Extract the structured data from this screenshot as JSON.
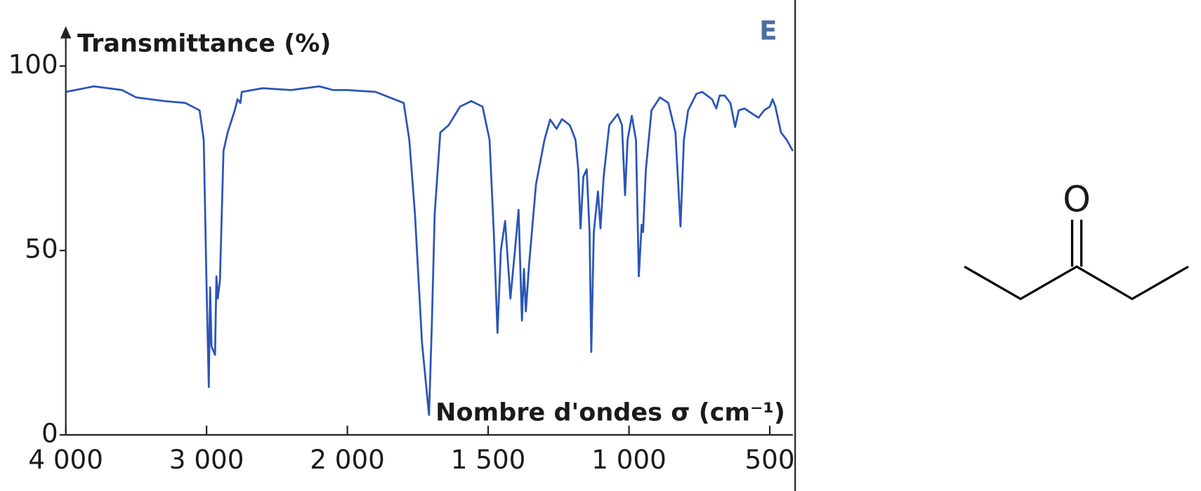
{
  "chart_data": {
    "type": "line",
    "panel_label": "E",
    "y_label": "Transmittance (%)",
    "x_label": "Nombre d'ondes σ (cm⁻¹)",
    "xscale": "piecewise",
    "xlim": [
      4000,
      418
    ],
    "ylim": [
      0,
      100
    ],
    "xticks": [
      {
        "value": 4000,
        "label": "4 000"
      },
      {
        "value": 3000,
        "label": "3 000"
      },
      {
        "value": 2000,
        "label": "2 000"
      },
      {
        "value": 1500,
        "label": "1 500"
      },
      {
        "value": 1000,
        "label": "1 000"
      },
      500
    ],
    "yticks": [
      0,
      50,
      100
    ],
    "color": "#2b55b8",
    "x": [
      4000,
      3800,
      3600,
      3500,
      3300,
      3150,
      3050,
      3020,
      3000,
      2984,
      2975,
      2965,
      2940,
      2930,
      2920,
      2905,
      2880,
      2850,
      2800,
      2780,
      2760,
      2750,
      2600,
      2400,
      2200,
      2100,
      2000,
      1900,
      1800,
      1780,
      1760,
      1735,
      1710,
      1700,
      1690,
      1670,
      1640,
      1600,
      1560,
      1520,
      1495,
      1480,
      1467,
      1455,
      1440,
      1421,
      1405,
      1392,
      1380,
      1373,
      1366,
      1355,
      1330,
      1300,
      1280,
      1257,
      1238,
      1210,
      1190,
      1180,
      1172,
      1162,
      1150,
      1140,
      1134,
      1125,
      1110,
      1101,
      1090,
      1070,
      1040,
      1025,
      1014,
      1005,
      990,
      975,
      965,
      955,
      950,
      940,
      920,
      890,
      860,
      835,
      817,
      805,
      790,
      760,
      740,
      705,
      690,
      678,
      660,
      640,
      623,
      610,
      590,
      560,
      540,
      520,
      500,
      490,
      480,
      460,
      440,
      418
    ],
    "values": [
      93,
      94.5,
      93.5,
      91.5,
      90.5,
      90,
      88,
      80,
      40,
      13,
      40,
      24,
      21.7,
      43,
      37,
      42,
      77,
      82,
      88,
      91,
      90,
      93,
      94,
      93.5,
      94.5,
      93.5,
      93.5,
      93,
      90,
      80,
      60,
      25,
      5.4,
      30,
      60,
      82,
      84,
      89,
      90.5,
      89,
      80,
      55,
      27.7,
      50,
      58,
      37,
      50,
      61,
      31,
      45,
      33.5,
      46,
      68,
      80,
      85.5,
      83,
      85.6,
      84,
      80,
      72,
      56,
      70,
      72,
      55,
      22.5,
      55,
      66,
      56,
      70,
      84,
      87,
      84,
      65,
      80,
      86.5,
      80,
      43,
      57,
      55,
      72,
      88,
      91.5,
      90,
      82,
      56.5,
      80,
      88,
      92.5,
      93,
      91,
      88.5,
      92,
      92,
      90,
      83.5,
      88,
      88.5,
      87,
      86,
      88,
      89,
      91,
      89,
      82,
      80,
      77
    ]
  },
  "molecule": {
    "atom_label": "O"
  }
}
